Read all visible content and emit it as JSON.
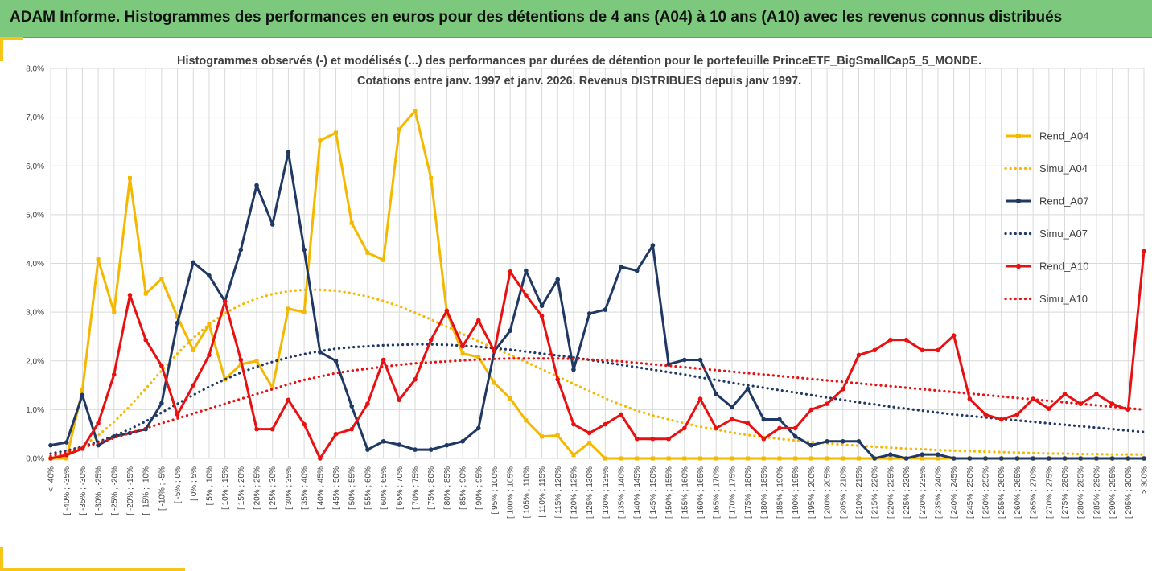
{
  "banner": {
    "title": "ADAM Informe. Histogrammes des performances en euros pour des détentions de 4 ans (A04) à 10 ans (A10) avec les revenus connus distribués"
  },
  "colors": {
    "banner_bg": "#7cc87c",
    "accent": "#f5c518",
    "A04": "#f5b800",
    "A07": "#1f3864",
    "A10": "#e81010",
    "grid": "#d9d9d9"
  },
  "chart_data": {
    "type": "line",
    "title": [
      "Histogrammes observés (-) et modélisés (...) des performances par durées de détention pour le portefeuille PrinceETF_BigSmallCap5_5_MONDE.",
      "Cotations entre janv. 1997 et janv. 2026. Revenus DISTRIBUES depuis janv 1997."
    ],
    "ylim": [
      0,
      8
    ],
    "yticks": [
      "0,0%",
      "1,0%",
      "2,0%",
      "3,0%",
      "4,0%",
      "5,0%",
      "6,0%",
      "7,0%",
      "8,0%"
    ],
    "grid": true,
    "legend_position": "right",
    "categories": [
      "< -40%",
      "[ -40% ; -35%",
      "[ -35% ; -30%",
      "[ -30% ; -25%",
      "[ -25% ; -20%",
      "[ -20% ; -15%",
      "[ -15% ; -10%",
      "[ -10% ; -5%",
      "[ -5% ; 0%",
      "[ 0% ; 5%",
      "[ 5% ; 10%",
      "[ 10% ; 15%",
      "[ 15% ; 20%",
      "[ 20% ; 25%",
      "[ 25% ; 30%",
      "[ 30% ; 35%",
      "[ 35% ; 40%",
      "[ 40% ; 45%",
      "[ 45% ; 50%",
      "[ 50% ; 55%",
      "[ 55% ; 60%",
      "[ 60% ; 65%",
      "[ 65% ; 70%",
      "[ 70% ; 75%",
      "[ 75% ; 80%",
      "[ 80% ; 85%",
      "[ 85% ; 90%",
      "[ 90% ; 95%",
      "[ 95% ; 100%",
      "[ 100% ; 105%",
      "[ 105% ; 110%",
      "[ 110% ; 115%",
      "[ 115% ; 120%",
      "[ 120% ; 125%",
      "[ 125% ; 130%",
      "[ 130% ; 135%",
      "[ 135% ; 140%",
      "[ 140% ; 145%",
      "[ 145% ; 150%",
      "[ 150% ; 155%",
      "[ 155% ; 160%",
      "[ 160% ; 165%",
      "[ 165% ; 170%",
      "[ 170% ; 175%",
      "[ 175% ; 180%",
      "[ 180% ; 185%",
      "[ 185% ; 190%",
      "[ 190% ; 195%",
      "[ 195% ; 200%",
      "[ 200% ; 205%",
      "[ 205% ; 210%",
      "[ 210% ; 215%",
      "[ 215% ; 220%",
      "[ 220% ; 225%",
      "[ 225% ; 230%",
      "[ 230% ; 235%",
      "[ 235% ; 240%",
      "[ 240% ; 245%",
      "[ 245% ; 250%",
      "[ 250% ; 255%",
      "[ 255% ; 260%",
      "[ 260% ; 265%",
      "[ 265% ; 270%",
      "[ 270% ; 275%",
      "[ 275% ; 280%",
      "[ 280% ; 285%",
      "[ 285% ; 290%",
      "[ 290% ; 295%",
      "[ 295% ; 300%",
      "> 300%"
    ],
    "series": [
      {
        "name": "Rend_A04",
        "style": "solid",
        "color": "#f5b800",
        "values": [
          0.0,
          0.0,
          1.4,
          4.08,
          3.0,
          5.75,
          3.38,
          3.68,
          2.9,
          2.22,
          2.75,
          1.62,
          1.93,
          2.0,
          1.45,
          3.07,
          3.0,
          6.52,
          6.68,
          4.83,
          4.22,
          4.07,
          6.75,
          7.13,
          5.75,
          3.0,
          2.15,
          2.08,
          1.55,
          1.23,
          0.78,
          0.45,
          0.47,
          0.07,
          0.32,
          0.0,
          0.0,
          0.0,
          0.0,
          0.0,
          0.0,
          0.0,
          0.0,
          0.0,
          0.0,
          0.0,
          0.0,
          0.0,
          0.0,
          0.0,
          0.0,
          0.0,
          0.0,
          0.0,
          0.0,
          0.0,
          0.0,
          0.0,
          0.0,
          0.0,
          0.0,
          0.0,
          0.0,
          0.0,
          0.0,
          0.0,
          0.0,
          0.0,
          0.0,
          0.0
        ]
      },
      {
        "name": "Simu_A04",
        "style": "dotted",
        "color": "#f5b800",
        "values": [
          0.02,
          0.1,
          0.25,
          0.47,
          0.75,
          1.07,
          1.43,
          1.8,
          2.15,
          2.47,
          2.75,
          2.98,
          3.15,
          3.28,
          3.37,
          3.43,
          3.46,
          3.46,
          3.44,
          3.39,
          3.32,
          3.23,
          3.12,
          2.99,
          2.85,
          2.7,
          2.55,
          2.4,
          2.26,
          2.12,
          1.98,
          1.83,
          1.68,
          1.53,
          1.38,
          1.23,
          1.1,
          0.98,
          0.88,
          0.8,
          0.72,
          0.65,
          0.59,
          0.53,
          0.48,
          0.44,
          0.4,
          0.37,
          0.34,
          0.31,
          0.28,
          0.26,
          0.24,
          0.22,
          0.2,
          0.19,
          0.17,
          0.16,
          0.15,
          0.14,
          0.13,
          0.12,
          0.11,
          0.1,
          0.1,
          0.09,
          0.09,
          0.08,
          0.08,
          0.08
        ]
      },
      {
        "name": "Rend_A07",
        "style": "solid",
        "color": "#1f3864",
        "values": [
          0.27,
          0.33,
          1.3,
          0.27,
          0.45,
          0.52,
          0.6,
          1.13,
          2.78,
          4.02,
          3.75,
          3.22,
          4.28,
          5.6,
          4.8,
          6.28,
          4.28,
          2.18,
          2.0,
          1.07,
          0.18,
          0.35,
          0.28,
          0.18,
          0.18,
          0.27,
          0.35,
          0.62,
          2.2,
          2.62,
          3.85,
          3.13,
          3.67,
          1.82,
          2.97,
          3.05,
          3.93,
          3.85,
          4.37,
          1.93,
          2.02,
          2.02,
          1.32,
          1.05,
          1.43,
          0.8,
          0.8,
          0.45,
          0.27,
          0.35,
          0.35,
          0.35,
          0.0,
          0.08,
          0.0,
          0.08,
          0.08,
          0.0,
          0.0,
          0.0,
          0.0,
          0.0,
          0.0,
          0.0,
          0.0,
          0.0,
          0.0,
          0.0,
          0.0,
          0.0
        ]
      },
      {
        "name": "Simu_A07",
        "style": "dotted",
        "color": "#1f3864",
        "values": [
          0.1,
          0.16,
          0.24,
          0.34,
          0.46,
          0.6,
          0.76,
          0.94,
          1.12,
          1.3,
          1.47,
          1.62,
          1.76,
          1.88,
          1.98,
          2.07,
          2.14,
          2.2,
          2.25,
          2.28,
          2.3,
          2.32,
          2.33,
          2.34,
          2.34,
          2.33,
          2.31,
          2.29,
          2.26,
          2.23,
          2.19,
          2.15,
          2.11,
          2.07,
          2.02,
          1.97,
          1.92,
          1.87,
          1.82,
          1.77,
          1.72,
          1.66,
          1.61,
          1.55,
          1.5,
          1.45,
          1.4,
          1.35,
          1.3,
          1.25,
          1.2,
          1.15,
          1.11,
          1.06,
          1.02,
          0.98,
          0.94,
          0.9,
          0.87,
          0.84,
          0.81,
          0.78,
          0.75,
          0.72,
          0.69,
          0.66,
          0.63,
          0.6,
          0.57,
          0.54
        ]
      },
      {
        "name": "Rend_A10",
        "style": "solid",
        "color": "#e81010",
        "values": [
          0.0,
          0.07,
          0.2,
          0.72,
          1.72,
          3.35,
          2.43,
          1.9,
          0.9,
          1.5,
          2.12,
          3.22,
          2.02,
          0.6,
          0.6,
          1.2,
          0.7,
          0.0,
          0.5,
          0.6,
          1.12,
          2.02,
          1.2,
          1.62,
          2.43,
          3.03,
          2.3,
          2.83,
          2.2,
          3.83,
          3.35,
          2.92,
          1.62,
          0.7,
          0.52,
          0.7,
          0.9,
          0.4,
          0.4,
          0.4,
          0.62,
          1.22,
          0.62,
          0.8,
          0.72,
          0.4,
          0.62,
          0.62,
          1.0,
          1.12,
          1.42,
          2.12,
          2.22,
          2.43,
          2.43,
          2.22,
          2.22,
          2.52,
          1.22,
          0.9,
          0.8,
          0.9,
          1.22,
          1.02,
          1.32,
          1.12,
          1.32,
          1.12,
          1.0,
          4.25
        ]
      },
      {
        "name": "Simu_A10",
        "style": "dotted",
        "color": "#e81010",
        "values": [
          0.05,
          0.12,
          0.22,
          0.32,
          0.42,
          0.52,
          0.62,
          0.72,
          0.82,
          0.92,
          1.02,
          1.12,
          1.22,
          1.32,
          1.42,
          1.52,
          1.61,
          1.68,
          1.75,
          1.8,
          1.84,
          1.88,
          1.92,
          1.95,
          1.97,
          1.99,
          2.01,
          2.03,
          2.04,
          2.05,
          2.05,
          2.05,
          2.05,
          2.04,
          2.03,
          2.01,
          1.99,
          1.96,
          1.93,
          1.9,
          1.87,
          1.84,
          1.81,
          1.78,
          1.75,
          1.72,
          1.69,
          1.66,
          1.63,
          1.6,
          1.57,
          1.54,
          1.51,
          1.48,
          1.45,
          1.42,
          1.39,
          1.36,
          1.33,
          1.3,
          1.27,
          1.24,
          1.21,
          1.18,
          1.15,
          1.12,
          1.09,
          1.06,
          1.03,
          1.0
        ]
      }
    ]
  }
}
